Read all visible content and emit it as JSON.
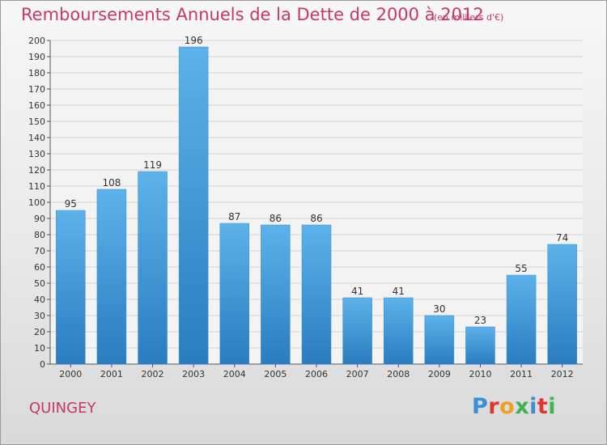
{
  "header": {
    "title": "Remboursements Annuels de la Dette de 2000 à 2012",
    "subtitle": "(en milliers d'€)"
  },
  "footer": {
    "commune": "QUINGEY",
    "logo": "Proxiti",
    "logo_colors": [
      "#3a8fd6",
      "#e2352f",
      "#f0a020",
      "#3fb34f",
      "#3a8fd6",
      "#e2352f",
      "#3fb34f"
    ]
  },
  "colors": {
    "accent": "#c8366c",
    "bar_top": "#5db2ea",
    "bar_bottom": "#2a7cbf"
  },
  "chart_data": {
    "type": "bar",
    "categories": [
      "2000",
      "2001",
      "2002",
      "2003",
      "2004",
      "2005",
      "2006",
      "2007",
      "2008",
      "2009",
      "2010",
      "2011",
      "2012"
    ],
    "values": [
      95,
      108,
      119,
      196,
      87,
      86,
      86,
      41,
      41,
      30,
      23,
      55,
      74
    ],
    "yticks": [
      0,
      10,
      20,
      30,
      40,
      50,
      60,
      70,
      80,
      90,
      100,
      110,
      120,
      130,
      140,
      150,
      160,
      170,
      180,
      190,
      200
    ],
    "ylim": [
      0,
      200
    ],
    "grid": true,
    "legend": "none"
  }
}
